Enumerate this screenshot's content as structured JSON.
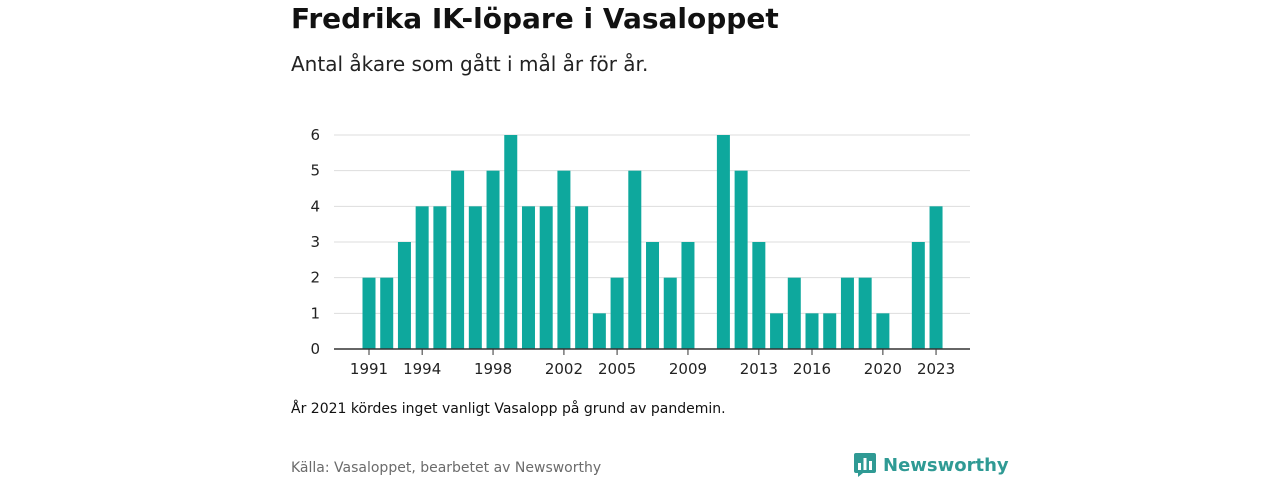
{
  "header": {
    "title": "Fredrika IK-löpare i Vasaloppet",
    "subtitle": "Antal åkare som gått i mål år för år."
  },
  "footer": {
    "note": "År 2021 kördes inget vanligt Vasalopp på grund av pandemin.",
    "source": "Källa: Vasaloppet, bearbetet av Newsworthy",
    "brand": "Newsworthy"
  },
  "colors": {
    "bar": "#0ea89d",
    "grid": "#dddddd",
    "axis": "#333333",
    "brand": "#2f9a94"
  },
  "icons": {
    "logo": "newsworthy-bar-chart-logo-icon"
  },
  "chart_data": {
    "type": "bar",
    "title": "Fredrika IK-löpare i Vasaloppet",
    "subtitle": "Antal åkare som gått i mål år för år.",
    "xlabel": "",
    "ylabel": "",
    "ylim": [
      0,
      6
    ],
    "yticks": [
      0,
      1,
      2,
      3,
      4,
      5,
      6
    ],
    "xticks": [
      1991,
      1994,
      1998,
      2002,
      2005,
      2009,
      2013,
      2016,
      2020,
      2023
    ],
    "grid": true,
    "legend": "none",
    "categories": [
      1991,
      1992,
      1993,
      1994,
      1995,
      1996,
      1997,
      1998,
      1999,
      2000,
      2001,
      2002,
      2003,
      2004,
      2005,
      2006,
      2007,
      2008,
      2009,
      2010,
      2011,
      2012,
      2013,
      2014,
      2015,
      2016,
      2017,
      2018,
      2019,
      2020,
      2021,
      2022,
      2023
    ],
    "values": [
      2,
      2,
      3,
      4,
      4,
      5,
      4,
      5,
      6,
      4,
      4,
      5,
      4,
      1,
      2,
      5,
      3,
      2,
      3,
      0,
      6,
      5,
      3,
      1,
      2,
      1,
      1,
      2,
      2,
      1,
      0,
      3,
      4
    ]
  }
}
